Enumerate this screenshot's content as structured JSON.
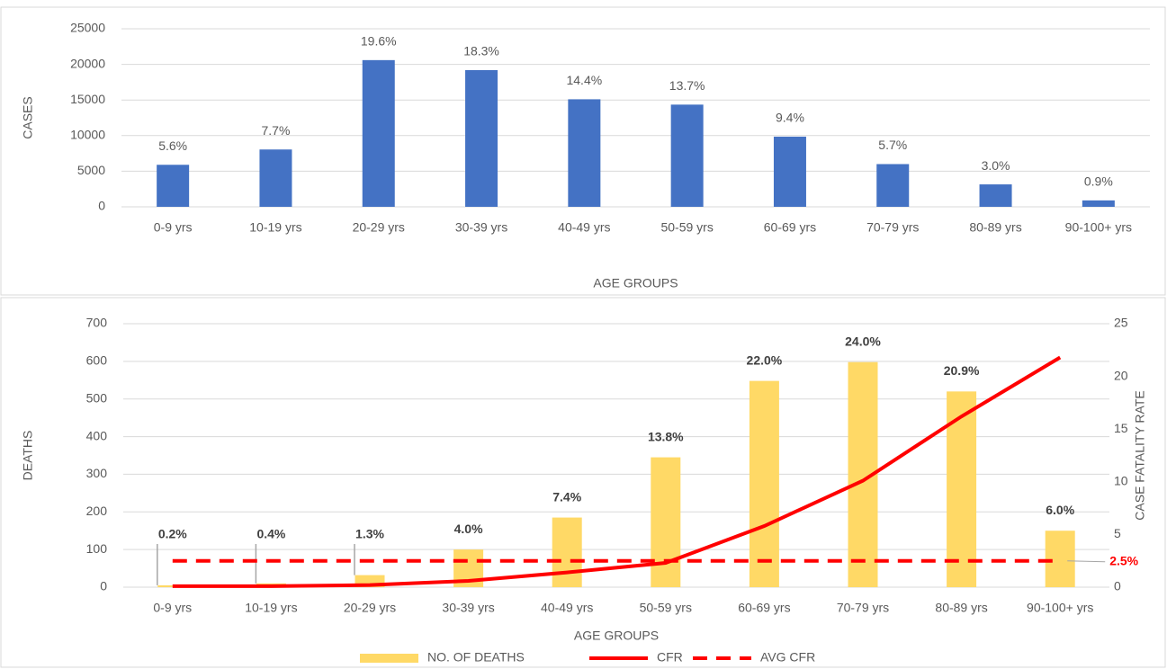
{
  "chart_data": [
    {
      "type": "bar",
      "x_label": "AGE GROUPS",
      "y_label": "CASES",
      "categories": [
        "0-9 yrs",
        "10-19 yrs",
        "20-29 yrs",
        "30-39 yrs",
        "40-49 yrs",
        "50-59 yrs",
        "60-69 yrs",
        "70-79 yrs",
        "80-89 yrs",
        "90-100+ yrs"
      ],
      "values": [
        5900,
        8050,
        20600,
        19200,
        15100,
        14350,
        9850,
        6000,
        3150,
        900
      ],
      "share_labels": [
        "5.6%",
        "7.7%",
        "19.6%",
        "18.3%",
        "14.4%",
        "13.7%",
        "9.4%",
        "5.7%",
        "3.0%",
        "0.9%"
      ],
      "color": "#4472c4",
      "ylim": [
        0,
        25000
      ],
      "yticks": [
        0,
        5000,
        10000,
        15000,
        20000,
        25000
      ],
      "grid": true
    },
    {
      "type": "combo",
      "x_label": "AGE GROUPS",
      "y_label": "DEATHS",
      "y2_label": "CASE FATALITY RATE",
      "categories": [
        "0-9 yrs",
        "10-19 yrs",
        "20-29 yrs",
        "30-39 yrs",
        "40-49 yrs",
        "50-59 yrs",
        "60-69 yrs",
        "70-79 yrs",
        "80-89 yrs",
        "90-100+ yrs"
      ],
      "series": [
        {
          "name": "NO. OF DEATHS",
          "type": "bar",
          "color": "#ffd966",
          "values": [
            5,
            10,
            32,
            100,
            185,
            345,
            548,
            598,
            520,
            150
          ],
          "share_labels": [
            "0.2%",
            "0.4%",
            "1.3%",
            "4.0%",
            "7.4%",
            "13.8%",
            "22.0%",
            "24.0%",
            "20.9%",
            "6.0%"
          ]
        },
        {
          "name": "CFR",
          "type": "line",
          "axis": "y2",
          "color": "#ff0000",
          "values": [
            0.1,
            0.1,
            0.2,
            0.6,
            1.4,
            2.3,
            5.8,
            10.1,
            16.2,
            21.8
          ]
        },
        {
          "name": "AVG CFR",
          "type": "dashed-line",
          "axis": "y2",
          "color": "#ff0000",
          "values": [
            2.5,
            2.5,
            2.5,
            2.5,
            2.5,
            2.5,
            2.5,
            2.5,
            2.5,
            2.5
          ],
          "value_labels": [
            null,
            null,
            null,
            null,
            null,
            null,
            null,
            null,
            null,
            "2.5%"
          ]
        }
      ],
      "ylim": [
        0,
        700
      ],
      "yticks": [
        0,
        100,
        200,
        300,
        400,
        500,
        600,
        700
      ],
      "y2lim": [
        0,
        25
      ],
      "y2ticks": [
        0,
        5,
        10,
        15,
        20,
        25
      ],
      "grid": true
    }
  ]
}
